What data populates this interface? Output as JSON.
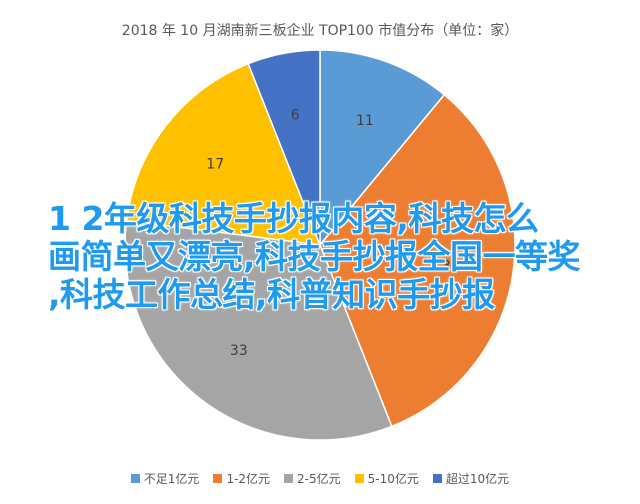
{
  "chart_data": {
    "type": "pie",
    "title": "2018 年 10 月湖南新三板企业 TOP100 市值分布（单位：家）",
    "slices": [
      {
        "name": "不足1亿元",
        "value": 11,
        "color": "#5b9bd5"
      },
      {
        "name": "1-2亿元",
        "value": 33,
        "color": "#ed7d31"
      },
      {
        "name": "2-5亿元",
        "value": 33,
        "color": "#a5a5a5"
      },
      {
        "name": "5-10亿元",
        "value": 17,
        "color": "#ffc000"
      },
      {
        "name": "超过10亿元",
        "value": 6,
        "color": "#4472c4"
      }
    ],
    "legend_position": "bottom"
  },
  "overlay": {
    "lines": [
      "1 2年级科技手抄报内容,科技怎么",
      "画简单又漂亮,科技手抄报全国一等奖",
      ",科技工作总结,科普知识手抄报"
    ]
  }
}
